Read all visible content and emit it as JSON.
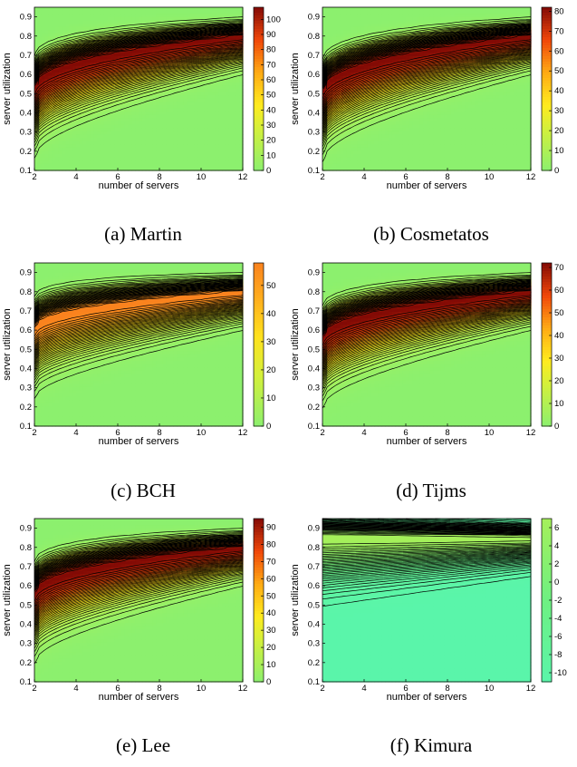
{
  "chart_data": [
    {
      "type": "heatmap",
      "id": "a",
      "caption": "(a)  Martin",
      "xlabel": "number of servers",
      "ylabel": "server utilization",
      "xlim": [
        2,
        12
      ],
      "ylim": [
        0.1,
        0.95
      ],
      "xticks": [
        "2",
        "4",
        "6",
        "8",
        "10",
        "12"
      ],
      "yticks": [
        "0.1",
        "0.2",
        "0.3",
        "0.4",
        "0.5",
        "0.6",
        "0.7",
        "0.8",
        "0.9"
      ],
      "colorbar": {
        "ticks": [
          "0",
          "10",
          "20",
          "30",
          "40",
          "50",
          "60",
          "70",
          "80",
          "90",
          "100"
        ],
        "min": 0,
        "max": 108,
        "colormap": "green-yellow-red"
      },
      "peak": {
        "value": 108,
        "x": 3,
        "y": 0.52,
        "ridge_x": 12,
        "ridge_y": 0.8
      }
    },
    {
      "type": "heatmap",
      "id": "b",
      "caption": "(b)  Cosmetatos",
      "xlabel": "number of servers",
      "ylabel": "server utilization",
      "xlim": [
        2,
        12
      ],
      "ylim": [
        0.1,
        0.95
      ],
      "xticks": [
        "2",
        "4",
        "6",
        "8",
        "10",
        "12"
      ],
      "yticks": [
        "0.1",
        "0.2",
        "0.3",
        "0.4",
        "0.5",
        "0.6",
        "0.7",
        "0.8",
        "0.9"
      ],
      "colorbar": {
        "ticks": [
          "0",
          "10",
          "20",
          "30",
          "40",
          "50",
          "60",
          "70",
          "80"
        ],
        "min": 0,
        "max": 82,
        "colormap": "green-yellow-red"
      },
      "peak": {
        "value": 82,
        "x": 2.5,
        "y": 0.5,
        "ridge_x": 12,
        "ridge_y": 0.8
      }
    },
    {
      "type": "heatmap",
      "id": "c",
      "caption": "(c)  BCH",
      "xlabel": "number of servers",
      "ylabel": "server utilization",
      "xlim": [
        2,
        12
      ],
      "ylim": [
        0.1,
        0.95
      ],
      "xticks": [
        "2",
        "4",
        "6",
        "8",
        "10",
        "12"
      ],
      "yticks": [
        "0.1",
        "0.2",
        "0.3",
        "0.4",
        "0.5",
        "0.6",
        "0.7",
        "0.8",
        "0.9"
      ],
      "colorbar": {
        "ticks": [
          "0",
          "10",
          "20",
          "30",
          "40",
          "50"
        ],
        "min": 0,
        "max": 58,
        "colormap": "green-yellow-orange"
      },
      "peak": {
        "value": 58,
        "x": 3.5,
        "y": 0.6,
        "ridge_x": 12,
        "ridge_y": 0.8
      }
    },
    {
      "type": "heatmap",
      "id": "d",
      "caption": "(d)  Tijms",
      "xlabel": "number of servers",
      "ylabel": "server utilization",
      "xlim": [
        2,
        12
      ],
      "ylim": [
        0.1,
        0.95
      ],
      "xticks": [
        "2",
        "4",
        "6",
        "8",
        "10",
        "12"
      ],
      "yticks": [
        "0.1",
        "0.2",
        "0.3",
        "0.4",
        "0.5",
        "0.6",
        "0.7",
        "0.8",
        "0.9"
      ],
      "colorbar": {
        "ticks": [
          "0",
          "10",
          "20",
          "30",
          "40",
          "50",
          "60",
          "70"
        ],
        "min": 0,
        "max": 72,
        "colormap": "green-yellow-red"
      },
      "peak": {
        "value": 72,
        "x": 3,
        "y": 0.55,
        "ridge_x": 12,
        "ridge_y": 0.8
      }
    },
    {
      "type": "heatmap",
      "id": "e",
      "caption": "(e)  Lee",
      "xlabel": "number of servers",
      "ylabel": "server utilization",
      "xlim": [
        2,
        12
      ],
      "ylim": [
        0.1,
        0.95
      ],
      "xticks": [
        "2",
        "4",
        "6",
        "8",
        "10",
        "12"
      ],
      "yticks": [
        "0.1",
        "0.2",
        "0.3",
        "0.4",
        "0.5",
        "0.6",
        "0.7",
        "0.8",
        "0.9"
      ],
      "colorbar": {
        "ticks": [
          "0",
          "10",
          "20",
          "30",
          "40",
          "50",
          "60",
          "70",
          "80",
          "90"
        ],
        "min": 0,
        "max": 95,
        "colormap": "green-yellow-red"
      },
      "peak": {
        "value": 95,
        "x": 2.5,
        "y": 0.55,
        "ridge_x": 12,
        "ridge_y": 0.8
      }
    },
    {
      "type": "heatmap",
      "id": "f",
      "caption": "(f)  Kimura",
      "xlabel": "number of servers",
      "ylabel": "server utilization",
      "xlim": [
        2,
        12
      ],
      "ylim": [
        0.1,
        0.95
      ],
      "xticks": [
        "2",
        "4",
        "6",
        "8",
        "10",
        "12"
      ],
      "yticks": [
        "0.1",
        "0.2",
        "0.3",
        "0.4",
        "0.5",
        "0.6",
        "0.7",
        "0.8",
        "0.9"
      ],
      "colorbar": {
        "ticks": [
          "-10",
          "-8",
          "-6",
          "-4",
          "-2",
          "0",
          "2",
          "4",
          "6"
        ],
        "min": -11,
        "max": 7,
        "colormap": "cyan-green"
      },
      "peak": {
        "value": 7,
        "x": 12,
        "y": 0.85,
        "ridge_x": 12,
        "ridge_y": 0.85
      }
    }
  ]
}
